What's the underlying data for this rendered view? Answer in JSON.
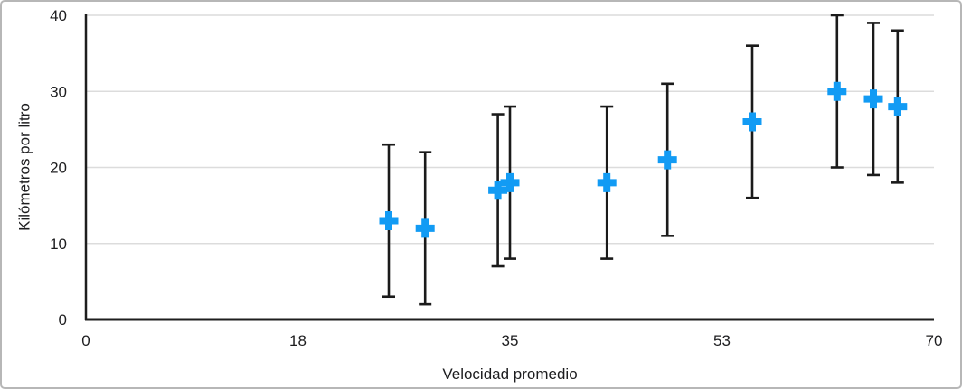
{
  "frame": {
    "background": "#ffffff",
    "border_color": "#b7b7b7"
  },
  "chart_data": {
    "type": "scatter",
    "title": "",
    "xlabel": "Velocidad promedio",
    "ylabel": "Kilómetros por litro",
    "xlim": [
      0,
      70
    ],
    "ylim": [
      0,
      40
    ],
    "x_ticks": {
      "positions": [
        0,
        17.5,
        35,
        52.5,
        70
      ],
      "labels": [
        "0",
        "18",
        "35",
        "53",
        "70"
      ]
    },
    "y_ticks": {
      "positions": [
        0,
        10,
        20,
        30,
        40
      ],
      "labels": [
        "0",
        "10",
        "20",
        "30",
        "40"
      ]
    },
    "grid": "horizontal-only",
    "legend": "none",
    "series": [
      {
        "name": "Kilómetros por litro",
        "marker": "plus",
        "marker_color": "#129BF4",
        "error_bar_color": "#1a1a1a",
        "error_y": 10,
        "points": [
          {
            "x": 25,
            "y": 13
          },
          {
            "x": 28,
            "y": 12
          },
          {
            "x": 34,
            "y": 17
          },
          {
            "x": 35,
            "y": 18
          },
          {
            "x": 43,
            "y": 18
          },
          {
            "x": 48,
            "y": 21
          },
          {
            "x": 55,
            "y": 26
          },
          {
            "x": 62,
            "y": 30
          },
          {
            "x": 65,
            "y": 29
          },
          {
            "x": 67,
            "y": 28
          }
        ]
      }
    ],
    "colors": {
      "axis": "#1e1e1e",
      "gridline": "#dcdcdc",
      "tick_text": "#1d1d1f"
    }
  }
}
